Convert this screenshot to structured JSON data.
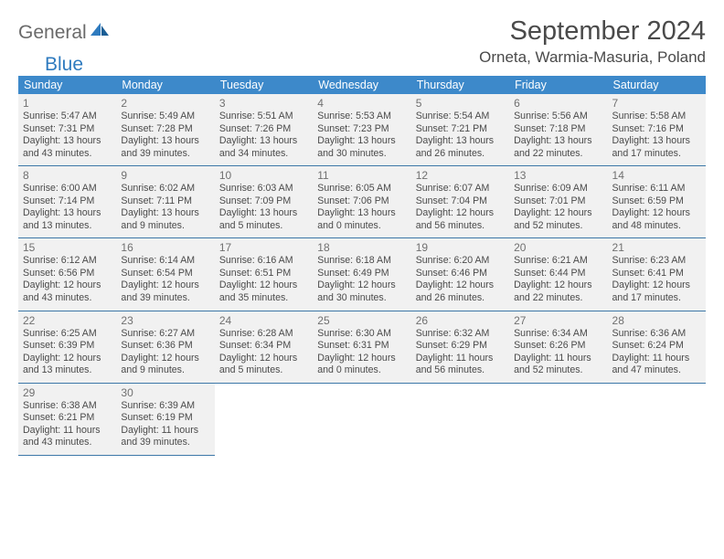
{
  "brand": {
    "part1": "General",
    "part2": "Blue"
  },
  "header": {
    "title": "September 2024",
    "location": "Orneta, Warmia-Masuria, Poland"
  },
  "colors": {
    "header_bg": "#3d89ca",
    "header_text": "#ffffff",
    "cell_bg": "#f1f1f1",
    "border": "#3d78a8",
    "brand_blue": "#2f7bbf",
    "text": "#4a4a4a",
    "muted": "#707070"
  },
  "weekdays": [
    "Sunday",
    "Monday",
    "Tuesday",
    "Wednesday",
    "Thursday",
    "Friday",
    "Saturday"
  ],
  "days": [
    {
      "n": "1",
      "sr": "5:47 AM",
      "ss": "7:31 PM",
      "dl": "13 hours and 43 minutes."
    },
    {
      "n": "2",
      "sr": "5:49 AM",
      "ss": "7:28 PM",
      "dl": "13 hours and 39 minutes."
    },
    {
      "n": "3",
      "sr": "5:51 AM",
      "ss": "7:26 PM",
      "dl": "13 hours and 34 minutes."
    },
    {
      "n": "4",
      "sr": "5:53 AM",
      "ss": "7:23 PM",
      "dl": "13 hours and 30 minutes."
    },
    {
      "n": "5",
      "sr": "5:54 AM",
      "ss": "7:21 PM",
      "dl": "13 hours and 26 minutes."
    },
    {
      "n": "6",
      "sr": "5:56 AM",
      "ss": "7:18 PM",
      "dl": "13 hours and 22 minutes."
    },
    {
      "n": "7",
      "sr": "5:58 AM",
      "ss": "7:16 PM",
      "dl": "13 hours and 17 minutes."
    },
    {
      "n": "8",
      "sr": "6:00 AM",
      "ss": "7:14 PM",
      "dl": "13 hours and 13 minutes."
    },
    {
      "n": "9",
      "sr": "6:02 AM",
      "ss": "7:11 PM",
      "dl": "13 hours and 9 minutes."
    },
    {
      "n": "10",
      "sr": "6:03 AM",
      "ss": "7:09 PM",
      "dl": "13 hours and 5 minutes."
    },
    {
      "n": "11",
      "sr": "6:05 AM",
      "ss": "7:06 PM",
      "dl": "13 hours and 0 minutes."
    },
    {
      "n": "12",
      "sr": "6:07 AM",
      "ss": "7:04 PM",
      "dl": "12 hours and 56 minutes."
    },
    {
      "n": "13",
      "sr": "6:09 AM",
      "ss": "7:01 PM",
      "dl": "12 hours and 52 minutes."
    },
    {
      "n": "14",
      "sr": "6:11 AM",
      "ss": "6:59 PM",
      "dl": "12 hours and 48 minutes."
    },
    {
      "n": "15",
      "sr": "6:12 AM",
      "ss": "6:56 PM",
      "dl": "12 hours and 43 minutes."
    },
    {
      "n": "16",
      "sr": "6:14 AM",
      "ss": "6:54 PM",
      "dl": "12 hours and 39 minutes."
    },
    {
      "n": "17",
      "sr": "6:16 AM",
      "ss": "6:51 PM",
      "dl": "12 hours and 35 minutes."
    },
    {
      "n": "18",
      "sr": "6:18 AM",
      "ss": "6:49 PM",
      "dl": "12 hours and 30 minutes."
    },
    {
      "n": "19",
      "sr": "6:20 AM",
      "ss": "6:46 PM",
      "dl": "12 hours and 26 minutes."
    },
    {
      "n": "20",
      "sr": "6:21 AM",
      "ss": "6:44 PM",
      "dl": "12 hours and 22 minutes."
    },
    {
      "n": "21",
      "sr": "6:23 AM",
      "ss": "6:41 PM",
      "dl": "12 hours and 17 minutes."
    },
    {
      "n": "22",
      "sr": "6:25 AM",
      "ss": "6:39 PM",
      "dl": "12 hours and 13 minutes."
    },
    {
      "n": "23",
      "sr": "6:27 AM",
      "ss": "6:36 PM",
      "dl": "12 hours and 9 minutes."
    },
    {
      "n": "24",
      "sr": "6:28 AM",
      "ss": "6:34 PM",
      "dl": "12 hours and 5 minutes."
    },
    {
      "n": "25",
      "sr": "6:30 AM",
      "ss": "6:31 PM",
      "dl": "12 hours and 0 minutes."
    },
    {
      "n": "26",
      "sr": "6:32 AM",
      "ss": "6:29 PM",
      "dl": "11 hours and 56 minutes."
    },
    {
      "n": "27",
      "sr": "6:34 AM",
      "ss": "6:26 PM",
      "dl": "11 hours and 52 minutes."
    },
    {
      "n": "28",
      "sr": "6:36 AM",
      "ss": "6:24 PM",
      "dl": "11 hours and 47 minutes."
    },
    {
      "n": "29",
      "sr": "6:38 AM",
      "ss": "6:21 PM",
      "dl": "11 hours and 43 minutes."
    },
    {
      "n": "30",
      "sr": "6:39 AM",
      "ss": "6:19 PM",
      "dl": "11 hours and 39 minutes."
    }
  ],
  "labels": {
    "sunrise": "Sunrise:",
    "sunset": "Sunset:",
    "daylight": "Daylight:"
  }
}
